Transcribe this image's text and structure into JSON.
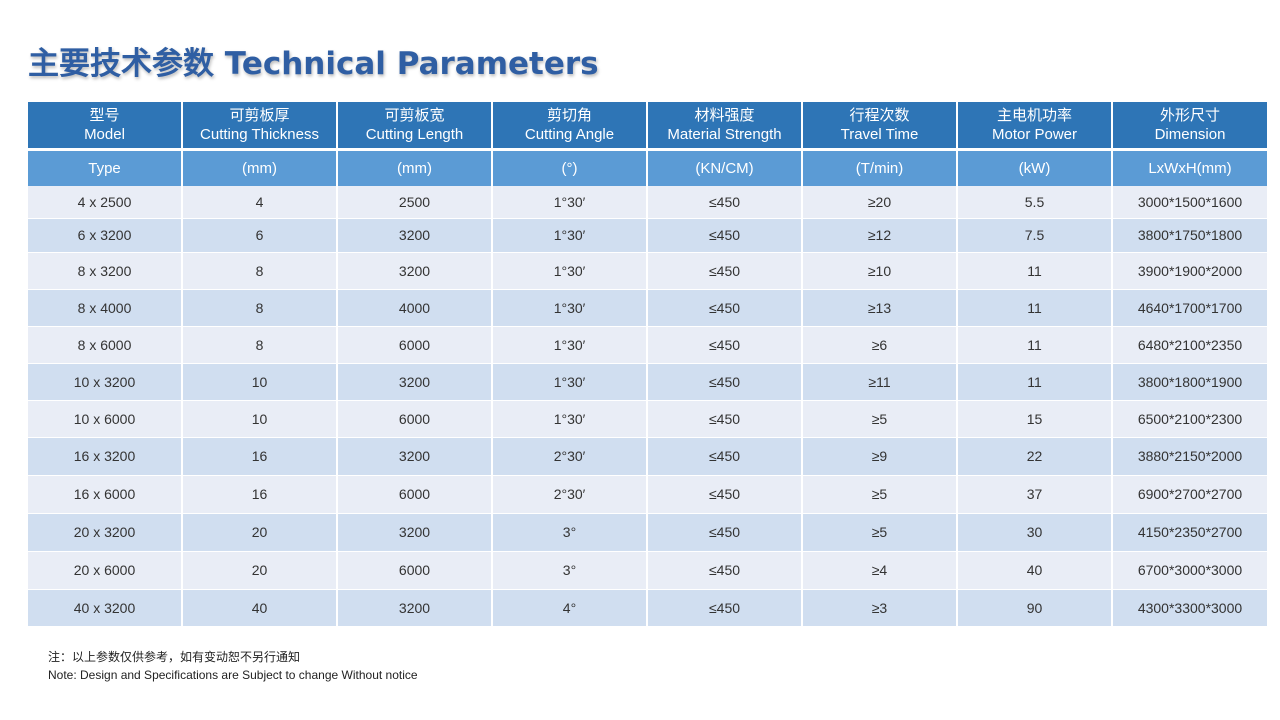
{
  "title": "主要技术参数 Technical Parameters",
  "table": {
    "headers": [
      {
        "cn": "型号",
        "en": "Model",
        "unit": "Type"
      },
      {
        "cn": "可剪板厚",
        "en": "Cutting Thickness",
        "unit": "(mm)"
      },
      {
        "cn": "可剪板宽",
        "en": "Cutting Length",
        "unit": "(mm)"
      },
      {
        "cn": "剪切角",
        "en": "Cutting Angle",
        "unit": "(°)"
      },
      {
        "cn": "材料强度",
        "en": "Material Strength",
        "unit": "(KN/CM)"
      },
      {
        "cn": "行程次数",
        "en": "Travel Time",
        "unit": "(T/min)"
      },
      {
        "cn": "主电机功率",
        "en": "Motor Power",
        "unit": "(kW)"
      },
      {
        "cn": "外形尺寸",
        "en": "Dimension",
        "unit": "LxWxH(mm)"
      }
    ],
    "rows": [
      [
        "4 x 2500",
        "4",
        "2500",
        "1°30′",
        "≤450",
        "≥20",
        "5.5",
        "3000*1500*1600"
      ],
      [
        "6 x 3200",
        "6",
        "3200",
        "1°30′",
        "≤450",
        "≥12",
        "7.5",
        "3800*1750*1800"
      ],
      [
        "8 x 3200",
        "8",
        "3200",
        "1°30′",
        "≤450",
        "≥10",
        "11",
        "3900*1900*2000"
      ],
      [
        "8 x 4000",
        "8",
        "4000",
        "1°30′",
        "≤450",
        "≥13",
        "11",
        "4640*1700*1700"
      ],
      [
        "8 x 6000",
        "8",
        "6000",
        "1°30′",
        "≤450",
        "≥6",
        "11",
        "6480*2100*2350"
      ],
      [
        "10 x 3200",
        "10",
        "3200",
        "1°30′",
        "≤450",
        "≥11",
        "11",
        "3800*1800*1900"
      ],
      [
        "10 x 6000",
        "10",
        "6000",
        "1°30′",
        "≤450",
        "≥5",
        "15",
        "6500*2100*2300"
      ],
      [
        "16 x 3200",
        "16",
        "3200",
        "2°30′",
        "≤450",
        "≥9",
        "22",
        "3880*2150*2000"
      ],
      [
        "16 x 6000",
        "16",
        "6000",
        "2°30′",
        "≤450",
        "≥5",
        "37",
        "6900*2700*2700"
      ],
      [
        "20 x 3200",
        "20",
        "3200",
        "3°",
        "≤450",
        "≥5",
        "30",
        "4150*2350*2700"
      ],
      [
        "20 x 6000",
        "20",
        "6000",
        "3°",
        "≤450",
        "≥4",
        "40",
        "6700*3000*3000"
      ],
      [
        "40 x 3200",
        "40",
        "3200",
        "4°",
        "≤450",
        "≥3",
        "90",
        "4300*3300*3000"
      ]
    ]
  },
  "notes": {
    "cn": "注：以上参数仅供参考，如有变动恕不另行通知",
    "en": "Note: Design and Specifications are Subject to change Without notice"
  },
  "colors": {
    "title": "#2f5ea3",
    "header_dark": "#2e75b6",
    "header_light": "#5b9bd5",
    "row_odd": "#e9edf6",
    "row_even": "#d0def0"
  }
}
